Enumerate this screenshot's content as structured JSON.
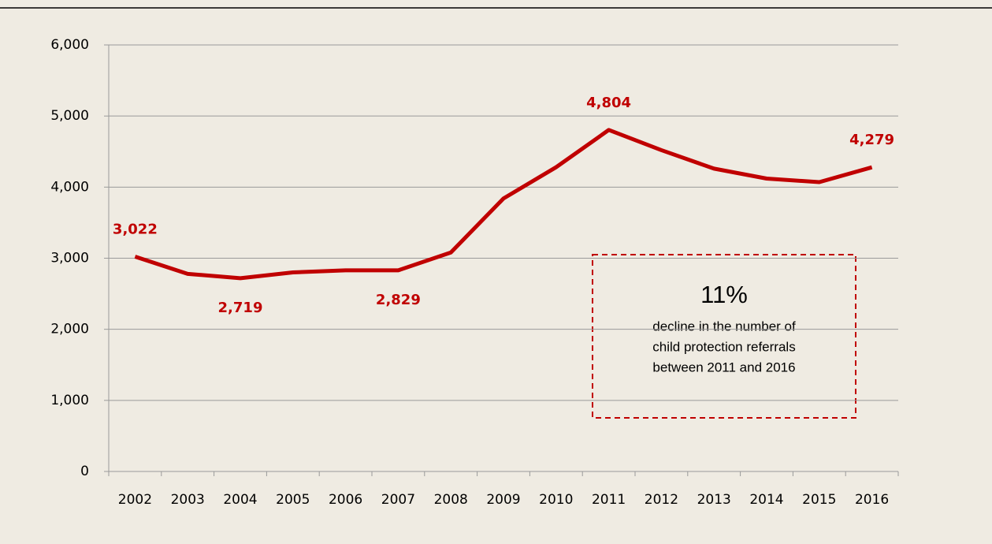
{
  "chart_data": {
    "type": "line",
    "categories": [
      "2002",
      "2003",
      "2004",
      "2005",
      "2006",
      "2007",
      "2008",
      "2009",
      "2010",
      "2011",
      "2012",
      "2013",
      "2014",
      "2015",
      "2016"
    ],
    "series": [
      {
        "name": "Child protection referrals",
        "color": "#c00000",
        "values": [
          3022,
          2780,
          2719,
          2800,
          2830,
          2829,
          3080,
          3840,
          4280,
          4804,
          4520,
          4260,
          4120,
          4070,
          4279
        ],
        "value_labels": [
          "3,022",
          null,
          "2,719",
          null,
          null,
          "2,829",
          null,
          null,
          null,
          "4,804",
          null,
          null,
          null,
          null,
          "4,279"
        ]
      }
    ],
    "ylim": [
      0,
      6000
    ],
    "yticks": [
      0,
      {
        "value": 1000,
        "label": "1,000"
      },
      {
        "value": 2000,
        "label": "2,000"
      },
      {
        "value": 3000,
        "label": "3,000"
      },
      {
        "value": 4000,
        "label": "4,000"
      },
      {
        "value": 5000,
        "label": "5,000"
      },
      {
        "value": 6000,
        "label": "6,000"
      }
    ],
    "grid": true,
    "annotation": {
      "headline": "11%",
      "lines": [
        "decline in the number of",
        "child protection referrals",
        "between 2011 and 2016"
      ]
    }
  }
}
